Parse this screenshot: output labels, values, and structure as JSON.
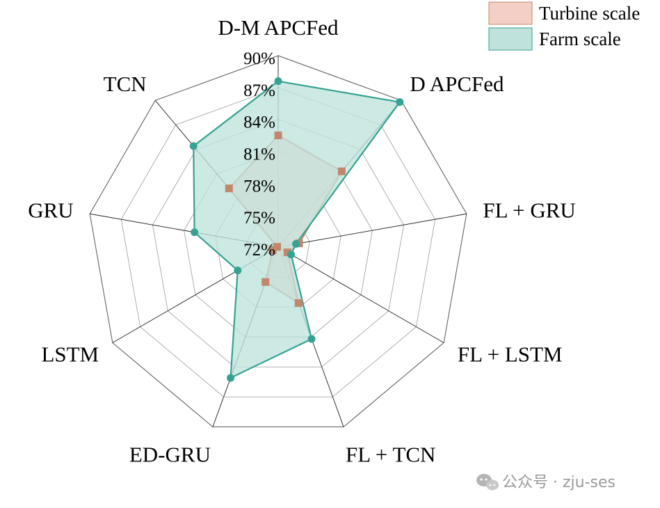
{
  "chart_data": {
    "type": "radar",
    "categories": [
      "D-M APCFed",
      "D APCFed",
      "FL + GRU",
      "FL + LSTM",
      "FL + TCN",
      "ED-GRU",
      "LSTM",
      "GRU",
      "TCN"
    ],
    "tick_labels": [
      "72%",
      "75%",
      "78%",
      "81%",
      "84%",
      "87%",
      "90%"
    ],
    "rlim": [
      72,
      90
    ],
    "series": [
      {
        "name": "Turbine scale",
        "values": [
          82.5,
          81.3,
          74.0,
          73.0,
          77.6,
          75.5,
          72.6,
          72.1,
          79.2
        ],
        "fill": "#f4cfc5",
        "line": "#c0876c",
        "marker": "square"
      },
      {
        "name": "Farm scale",
        "values": [
          87.6,
          89.8,
          73.7,
          73.4,
          81.2,
          85.1,
          76.4,
          80.0,
          84.4
        ],
        "fill": "#bfe3dc",
        "line": "#35a292",
        "marker": "circle"
      }
    ],
    "grid": true,
    "legend_position": "top-right"
  },
  "watermark": {
    "text": "公众号 · zju-ses"
  }
}
